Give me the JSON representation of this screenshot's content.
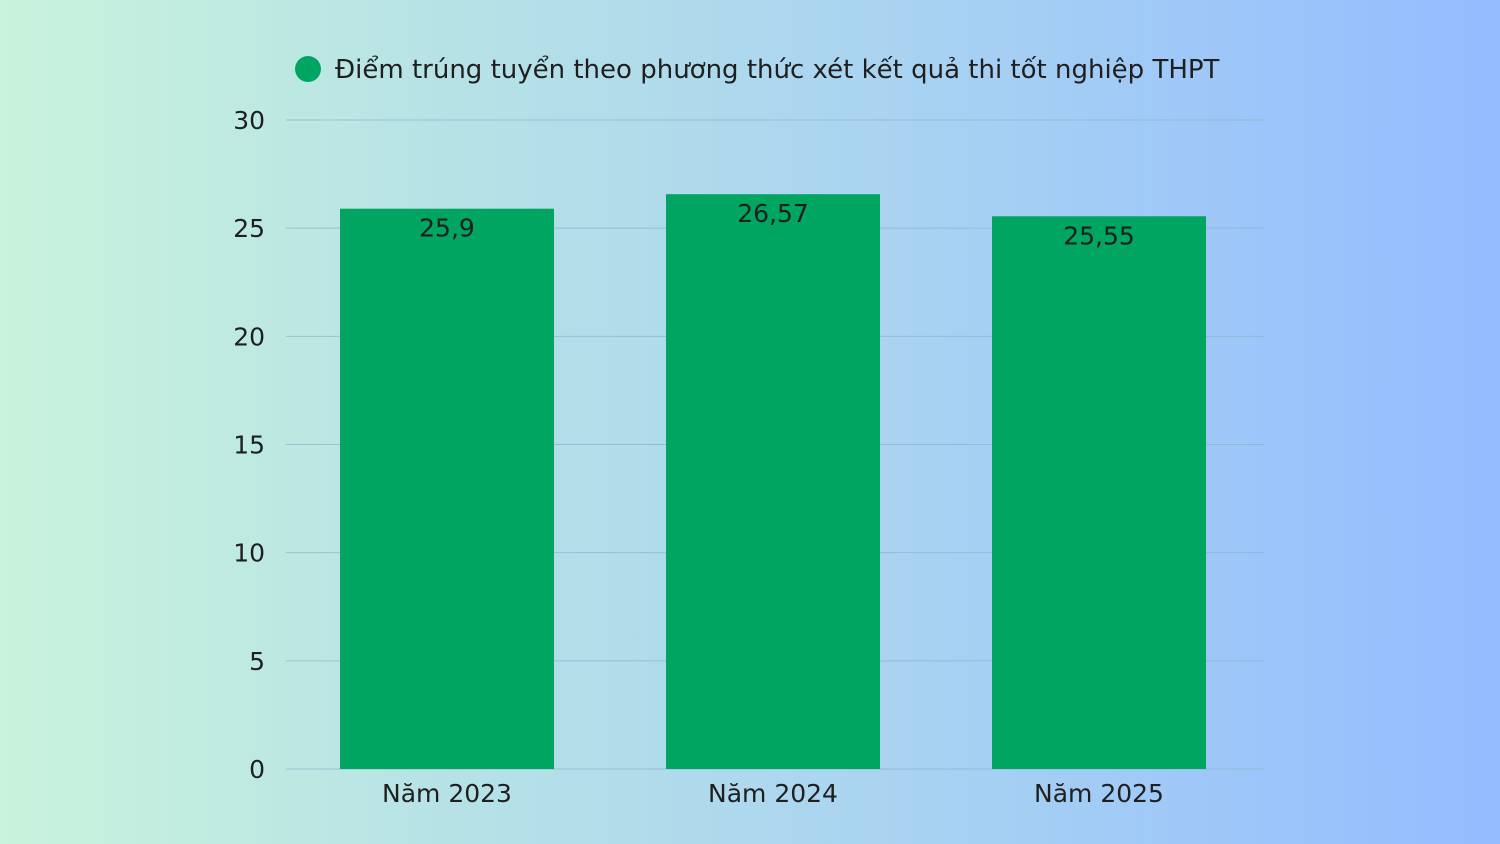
{
  "chart_data": {
    "type": "bar",
    "categories": [
      "Năm 2023",
      "Năm 2024",
      "Năm 2025"
    ],
    "series": [
      {
        "name": "Điểm trúng tuyển theo phương thức xét kết quả thi tốt nghiệp THPT",
        "values": [
          25.9,
          26.57,
          25.55
        ],
        "data_labels": [
          "25,9",
          "26,57",
          "25,55"
        ],
        "color": "#00a562"
      }
    ],
    "title": "",
    "xlabel": "",
    "ylabel": "",
    "ylim": [
      0,
      30
    ],
    "yticks": [
      0,
      5,
      10,
      15,
      20,
      25,
      30
    ],
    "grid": true,
    "legend_position": "top",
    "gridline_color": "#8fb0c8"
  }
}
